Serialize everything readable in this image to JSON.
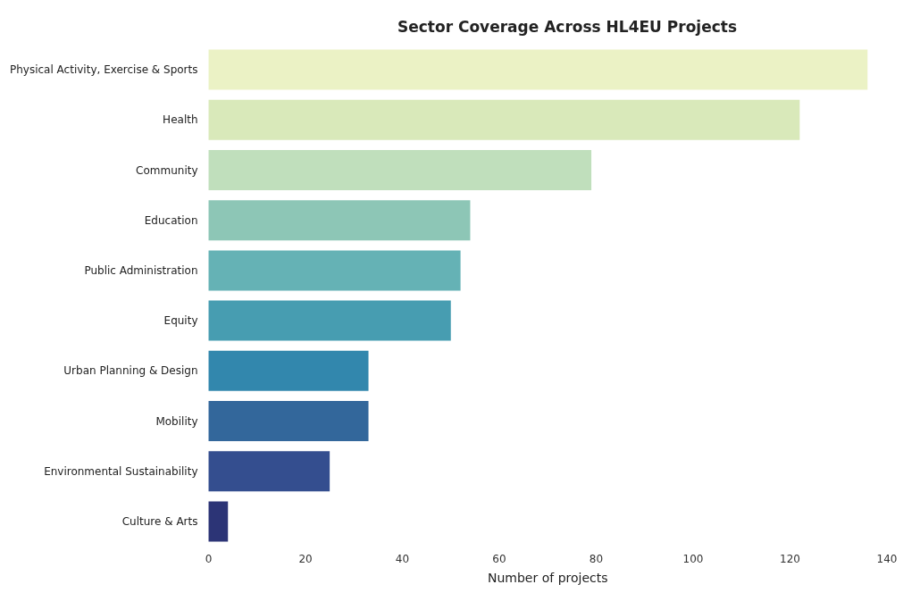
{
  "chart_data": {
    "type": "bar",
    "orientation": "horizontal",
    "title": "Sector Coverage Across HL4EU Projects",
    "xlabel": "Number of projects",
    "categories": [
      "Physical Activity, Exercise & Sports",
      "Health",
      "Community",
      "Education",
      "Public Administration",
      "Equity",
      "Urban Planning & Design",
      "Mobility",
      "Environmental Sustainability",
      "Culture & Arts"
    ],
    "values": [
      136,
      122,
      79,
      54,
      52,
      50,
      33,
      33,
      25,
      4
    ],
    "colors": [
      "#ebf2c5",
      "#d9e9ba",
      "#c0dfbc",
      "#8dc6b6",
      "#65b2b5",
      "#479db1",
      "#3287ad",
      "#33679b",
      "#344e8f",
      "#2c3476"
    ],
    "xlim": [
      0,
      140
    ],
    "xticks": [
      0,
      20,
      40,
      60,
      80,
      100,
      120,
      140
    ],
    "grid": false
  }
}
